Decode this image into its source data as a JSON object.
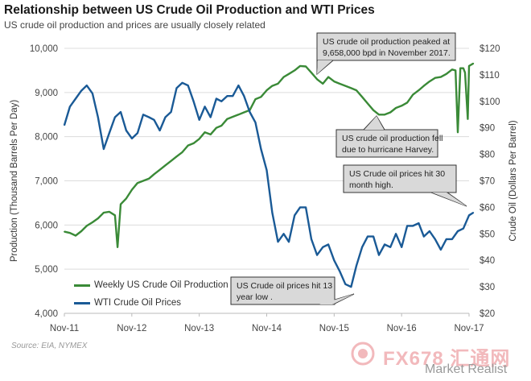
{
  "header": {
    "title": "Relationship between US Crude Oil Production and WTI Prices",
    "subtitle": "US crude oil production and prices are usually closely related"
  },
  "source": "Source: EIA, NYMEX",
  "watermark": {
    "brand": "FX678 汇通网",
    "publisher": "Market Realist"
  },
  "colors": {
    "production": "#3a8a37",
    "price": "#1a5a96",
    "callout_bg": "#d9d9d9",
    "callout_border": "#333333"
  },
  "chart_data": {
    "type": "line",
    "x_tick_labels": [
      "Nov-11",
      "Nov-12",
      "Nov-13",
      "Nov-14",
      "Nov-15",
      "Nov-16",
      "Nov-17"
    ],
    "y_left": {
      "label": "Production (Thousand  Barrels Per Day)",
      "ticks": [
        "4,000",
        "5,000",
        "6,000",
        "7,000",
        "8,000",
        "9,000",
        "10,000"
      ],
      "range": [
        4000,
        10000
      ]
    },
    "y_right": {
      "label": "Crude Oil (Dollars Per Barrel)",
      "ticks": [
        "$20",
        "$30",
        "$40",
        "$50",
        "$60",
        "$70",
        "$80",
        "$90",
        "$100",
        "$110",
        "$120"
      ],
      "range": [
        20,
        120
      ]
    },
    "series": [
      {
        "name": "Weekly US Crude Oil Production",
        "axis": "left",
        "points": [
          [
            "2011-11",
            5850
          ],
          [
            "2011-12",
            5820
          ],
          [
            "2012-01",
            5760
          ],
          [
            "2012-02",
            5860
          ],
          [
            "2012-03",
            5980
          ],
          [
            "2012-04",
            6060
          ],
          [
            "2012-05",
            6150
          ],
          [
            "2012-06",
            6280
          ],
          [
            "2012-07",
            6300
          ],
          [
            "2012-08",
            6220
          ],
          [
            "2012-08-15",
            5500
          ],
          [
            "2012-09",
            6470
          ],
          [
            "2012-10",
            6600
          ],
          [
            "2012-11",
            6800
          ],
          [
            "2012-12",
            6950
          ],
          [
            "2013-01",
            7000
          ],
          [
            "2013-02",
            7050
          ],
          [
            "2013-03",
            7150
          ],
          [
            "2013-04",
            7250
          ],
          [
            "2013-05",
            7350
          ],
          [
            "2013-06",
            7450
          ],
          [
            "2013-07",
            7550
          ],
          [
            "2013-08",
            7650
          ],
          [
            "2013-09",
            7800
          ],
          [
            "2013-10",
            7850
          ],
          [
            "2013-11",
            7950
          ],
          [
            "2013-12",
            8100
          ],
          [
            "2014-01",
            8050
          ],
          [
            "2014-02",
            8200
          ],
          [
            "2014-03",
            8250
          ],
          [
            "2014-04",
            8400
          ],
          [
            "2014-05",
            8450
          ],
          [
            "2014-06",
            8500
          ],
          [
            "2014-07",
            8550
          ],
          [
            "2014-08",
            8600
          ],
          [
            "2014-09",
            8850
          ],
          [
            "2014-10",
            8900
          ],
          [
            "2014-11",
            9050
          ],
          [
            "2014-12",
            9150
          ],
          [
            "2015-01",
            9200
          ],
          [
            "2015-02",
            9350
          ],
          [
            "2015-03",
            9420
          ],
          [
            "2015-04",
            9500
          ],
          [
            "2015-05",
            9600
          ],
          [
            "2015-06",
            9590
          ],
          [
            "2015-07",
            9450
          ],
          [
            "2015-08",
            9300
          ],
          [
            "2015-09",
            9200
          ],
          [
            "2015-10",
            9350
          ],
          [
            "2015-11",
            9250
          ],
          [
            "2015-12",
            9200
          ],
          [
            "2016-01",
            9150
          ],
          [
            "2016-02",
            9100
          ],
          [
            "2016-03",
            9050
          ],
          [
            "2016-04",
            8900
          ],
          [
            "2016-05",
            8750
          ],
          [
            "2016-06",
            8600
          ],
          [
            "2016-07",
            8500
          ],
          [
            "2016-08",
            8500
          ],
          [
            "2016-09",
            8550
          ],
          [
            "2016-10",
            8650
          ],
          [
            "2016-11",
            8700
          ],
          [
            "2016-12",
            8770
          ],
          [
            "2017-01",
            8950
          ],
          [
            "2017-02",
            9050
          ],
          [
            "2017-03",
            9150
          ],
          [
            "2017-04",
            9250
          ],
          [
            "2017-05",
            9330
          ],
          [
            "2017-06",
            9350
          ],
          [
            "2017-07",
            9420
          ],
          [
            "2017-08",
            9520
          ],
          [
            "2017-08-20",
            9500
          ],
          [
            "2017-09",
            8100
          ],
          [
            "2017-09-15",
            9550
          ],
          [
            "2017-10",
            9550
          ],
          [
            "2017-10-10",
            9450
          ],
          [
            "2017-10-25",
            8400
          ],
          [
            "2017-11",
            9600
          ],
          [
            "2017-11-24",
            9658
          ]
        ]
      },
      {
        "name": "WTI Crude Oil Prices",
        "axis": "right",
        "points": [
          [
            "2011-11",
            91
          ],
          [
            "2011-12",
            98
          ],
          [
            "2012-01",
            101
          ],
          [
            "2012-02",
            104
          ],
          [
            "2012-03",
            106
          ],
          [
            "2012-04",
            103
          ],
          [
            "2012-05",
            94
          ],
          [
            "2012-06",
            82
          ],
          [
            "2012-07",
            88
          ],
          [
            "2012-08",
            94
          ],
          [
            "2012-09",
            96
          ],
          [
            "2012-10",
            89
          ],
          [
            "2012-11",
            86
          ],
          [
            "2012-12",
            88
          ],
          [
            "2013-01",
            95
          ],
          [
            "2013-02",
            94
          ],
          [
            "2013-03",
            93
          ],
          [
            "2013-04",
            89
          ],
          [
            "2013-05",
            94
          ],
          [
            "2013-06",
            96
          ],
          [
            "2013-07",
            105
          ],
          [
            "2013-08",
            107
          ],
          [
            "2013-09",
            106
          ],
          [
            "2013-10",
            100
          ],
          [
            "2013-11",
            93
          ],
          [
            "2013-12",
            98
          ],
          [
            "2014-01",
            94
          ],
          [
            "2014-02",
            101
          ],
          [
            "2014-03",
            100
          ],
          [
            "2014-04",
            102
          ],
          [
            "2014-05",
            102
          ],
          [
            "2014-06",
            106
          ],
          [
            "2014-07",
            102
          ],
          [
            "2014-08",
            96
          ],
          [
            "2014-09",
            92
          ],
          [
            "2014-10",
            82
          ],
          [
            "2014-11",
            74
          ],
          [
            "2014-12",
            58
          ],
          [
            "2015-01",
            47
          ],
          [
            "2015-02",
            50
          ],
          [
            "2015-03",
            47
          ],
          [
            "2015-04",
            57
          ],
          [
            "2015-05",
            60
          ],
          [
            "2015-06",
            60
          ],
          [
            "2015-07",
            48
          ],
          [
            "2015-08",
            42
          ],
          [
            "2015-09",
            45
          ],
          [
            "2015-10",
            46
          ],
          [
            "2015-11",
            40
          ],
          [
            "2015-12",
            36
          ],
          [
            "2016-01",
            31
          ],
          [
            "2016-02",
            30
          ],
          [
            "2016-03",
            38
          ],
          [
            "2016-04",
            45
          ],
          [
            "2016-05",
            49
          ],
          [
            "2016-06",
            49
          ],
          [
            "2016-07",
            42
          ],
          [
            "2016-08",
            46
          ],
          [
            "2016-09",
            45
          ],
          [
            "2016-10",
            50
          ],
          [
            "2016-11",
            45
          ],
          [
            "2016-12",
            53
          ],
          [
            "2017-01",
            53
          ],
          [
            "2017-02",
            54
          ],
          [
            "2017-03",
            49
          ],
          [
            "2017-04",
            51
          ],
          [
            "2017-05",
            48
          ],
          [
            "2017-06",
            44
          ],
          [
            "2017-07",
            48
          ],
          [
            "2017-08",
            48
          ],
          [
            "2017-09",
            51
          ],
          [
            "2017-10",
            52
          ],
          [
            "2017-11",
            57
          ],
          [
            "2017-11-24",
            58
          ]
        ]
      }
    ],
    "annotations": [
      {
        "id": "peak",
        "text": [
          "US crude oil production peaked at",
          "9,658,000 bpd in November 2017."
        ]
      },
      {
        "id": "harvey",
        "text": [
          "US crude oil production fell",
          "due to hurricane Harvey."
        ]
      },
      {
        "id": "high30",
        "text": [
          "US Crude oil prices hit 30",
          "month high."
        ]
      },
      {
        "id": "low13",
        "text": [
          "US Crude oil prices hit 13",
          "year low ."
        ]
      }
    ],
    "grid": true,
    "legend_position": "bottom-left"
  }
}
